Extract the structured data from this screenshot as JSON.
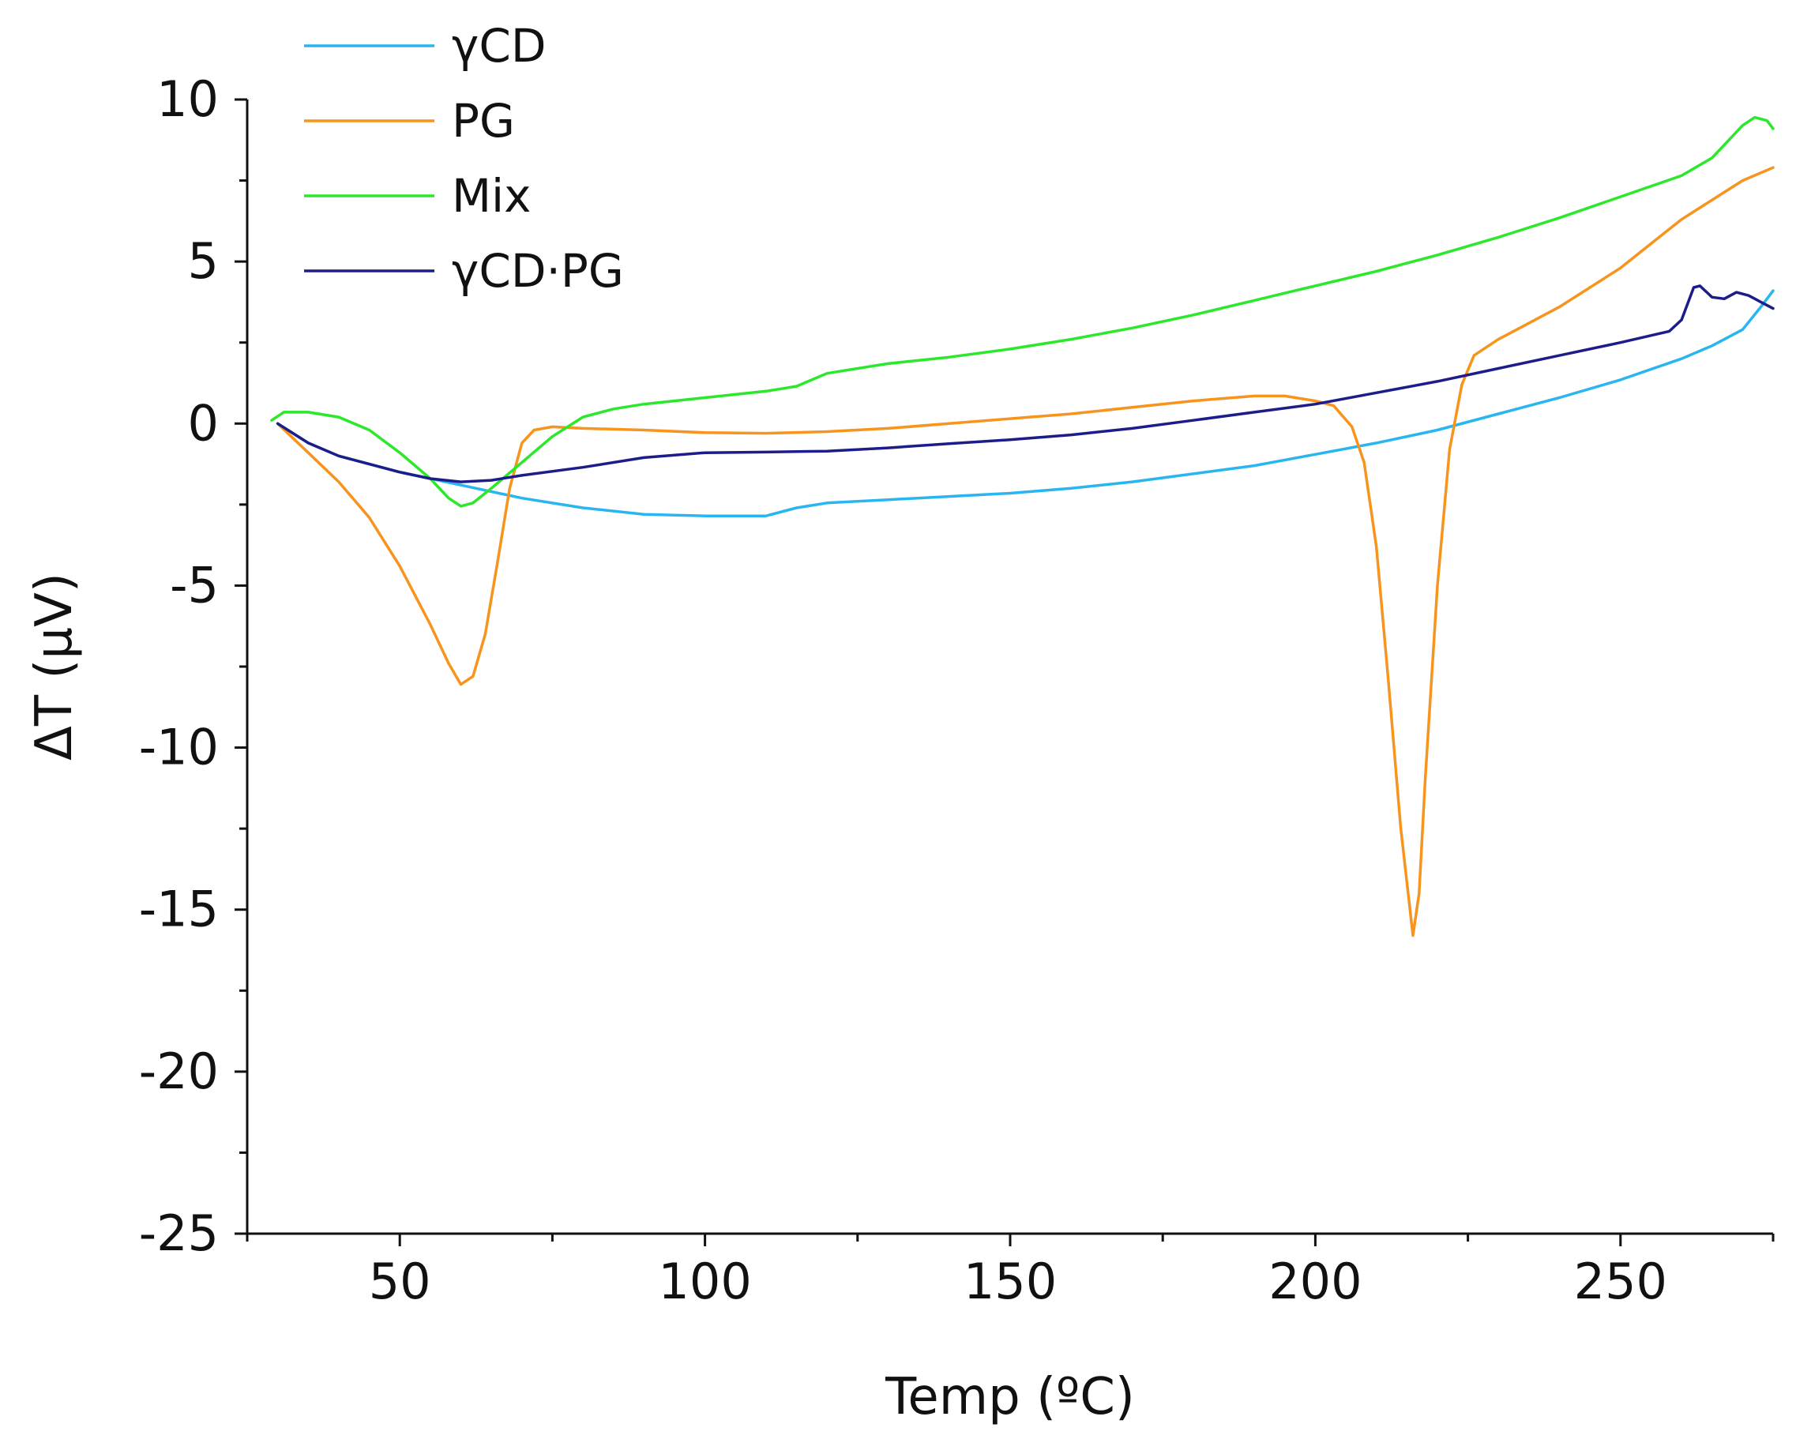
{
  "chart_data": {
    "type": "line",
    "title": "",
    "xlabel": "Temp (ºC)",
    "ylabel": "ΔT (μV)",
    "xlim": [
      25,
      275
    ],
    "ylim": [
      -25,
      10
    ],
    "x_ticks": [
      50,
      100,
      150,
      200,
      250
    ],
    "x_tick_labels": [
      "50",
      "100",
      "150",
      "200",
      "250"
    ],
    "y_ticks": [
      10,
      5,
      0,
      -5,
      -10,
      -15,
      -20,
      -25
    ],
    "y_tick_labels": [
      "10",
      "5",
      "0",
      "-5",
      "-10",
      "-15",
      "-20",
      "-25"
    ],
    "grid": false,
    "legend_position": "top-left",
    "series": [
      {
        "name": "γCD",
        "color": "#29b6f0",
        "points": [
          [
            30,
            0.0
          ],
          [
            35,
            -0.6
          ],
          [
            40,
            -1.0
          ],
          [
            50,
            -1.5
          ],
          [
            60,
            -1.9
          ],
          [
            70,
            -2.3
          ],
          [
            80,
            -2.6
          ],
          [
            90,
            -2.8
          ],
          [
            100,
            -2.85
          ],
          [
            110,
            -2.85
          ],
          [
            115,
            -2.6
          ],
          [
            120,
            -2.45
          ],
          [
            130,
            -2.35
          ],
          [
            140,
            -2.25
          ],
          [
            150,
            -2.15
          ],
          [
            160,
            -2.0
          ],
          [
            170,
            -1.8
          ],
          [
            180,
            -1.55
          ],
          [
            190,
            -1.3
          ],
          [
            200,
            -0.95
          ],
          [
            210,
            -0.6
          ],
          [
            220,
            -0.2
          ],
          [
            230,
            0.3
          ],
          [
            240,
            0.8
          ],
          [
            250,
            1.35
          ],
          [
            260,
            2.0
          ],
          [
            265,
            2.4
          ],
          [
            270,
            2.9
          ],
          [
            273,
            3.6
          ],
          [
            275,
            4.1
          ]
        ]
      },
      {
        "name": "PG",
        "color": "#f7941d",
        "points": [
          [
            30,
            0.0
          ],
          [
            35,
            -0.9
          ],
          [
            40,
            -1.8
          ],
          [
            45,
            -2.9
          ],
          [
            50,
            -4.4
          ],
          [
            55,
            -6.2
          ],
          [
            58,
            -7.4
          ],
          [
            60,
            -8.05
          ],
          [
            62,
            -7.8
          ],
          [
            64,
            -6.5
          ],
          [
            66,
            -4.3
          ],
          [
            68,
            -2.0
          ],
          [
            70,
            -0.6
          ],
          [
            72,
            -0.2
          ],
          [
            75,
            -0.1
          ],
          [
            80,
            -0.15
          ],
          [
            90,
            -0.2
          ],
          [
            100,
            -0.28
          ],
          [
            110,
            -0.3
          ],
          [
            120,
            -0.25
          ],
          [
            130,
            -0.15
          ],
          [
            140,
            0.0
          ],
          [
            150,
            0.15
          ],
          [
            160,
            0.3
          ],
          [
            170,
            0.5
          ],
          [
            180,
            0.7
          ],
          [
            190,
            0.85
          ],
          [
            195,
            0.85
          ],
          [
            200,
            0.7
          ],
          [
            203,
            0.55
          ],
          [
            206,
            -0.1
          ],
          [
            208,
            -1.2
          ],
          [
            210,
            -3.8
          ],
          [
            212,
            -8.0
          ],
          [
            214,
            -12.5
          ],
          [
            216,
            -15.8
          ],
          [
            217,
            -14.5
          ],
          [
            218,
            -11.0
          ],
          [
            220,
            -5.0
          ],
          [
            222,
            -0.8
          ],
          [
            224,
            1.2
          ],
          [
            226,
            2.1
          ],
          [
            230,
            2.6
          ],
          [
            240,
            3.6
          ],
          [
            250,
            4.8
          ],
          [
            260,
            6.3
          ],
          [
            270,
            7.5
          ],
          [
            275,
            7.9
          ]
        ]
      },
      {
        "name": "Mix",
        "color": "#2ce82c",
        "points": [
          [
            29,
            0.1
          ],
          [
            31,
            0.35
          ],
          [
            35,
            0.35
          ],
          [
            40,
            0.2
          ],
          [
            45,
            -0.2
          ],
          [
            50,
            -0.9
          ],
          [
            55,
            -1.7
          ],
          [
            58,
            -2.3
          ],
          [
            60,
            -2.55
          ],
          [
            62,
            -2.45
          ],
          [
            65,
            -2.0
          ],
          [
            70,
            -1.2
          ],
          [
            75,
            -0.4
          ],
          [
            80,
            0.2
          ],
          [
            85,
            0.45
          ],
          [
            90,
            0.6
          ],
          [
            100,
            0.8
          ],
          [
            110,
            1.0
          ],
          [
            115,
            1.15
          ],
          [
            120,
            1.55
          ],
          [
            130,
            1.85
          ],
          [
            140,
            2.05
          ],
          [
            150,
            2.3
          ],
          [
            160,
            2.6
          ],
          [
            170,
            2.95
          ],
          [
            180,
            3.35
          ],
          [
            190,
            3.8
          ],
          [
            200,
            4.25
          ],
          [
            210,
            4.7
          ],
          [
            220,
            5.2
          ],
          [
            230,
            5.75
          ],
          [
            240,
            6.35
          ],
          [
            250,
            7.0
          ],
          [
            260,
            7.65
          ],
          [
            265,
            8.2
          ],
          [
            270,
            9.2
          ],
          [
            272,
            9.45
          ],
          [
            274,
            9.35
          ],
          [
            275,
            9.1
          ]
        ]
      },
      {
        "name": "γCD·PG",
        "color": "#1c1d8a",
        "points": [
          [
            30,
            0.0
          ],
          [
            35,
            -0.6
          ],
          [
            40,
            -1.0
          ],
          [
            50,
            -1.5
          ],
          [
            55,
            -1.7
          ],
          [
            60,
            -1.8
          ],
          [
            65,
            -1.75
          ],
          [
            70,
            -1.6
          ],
          [
            80,
            -1.35
          ],
          [
            90,
            -1.05
          ],
          [
            100,
            -0.9
          ],
          [
            110,
            -0.88
          ],
          [
            120,
            -0.85
          ],
          [
            130,
            -0.75
          ],
          [
            140,
            -0.62
          ],
          [
            150,
            -0.5
          ],
          [
            160,
            -0.35
          ],
          [
            170,
            -0.15
          ],
          [
            180,
            0.1
          ],
          [
            190,
            0.35
          ],
          [
            200,
            0.6
          ],
          [
            210,
            0.95
          ],
          [
            220,
            1.3
          ],
          [
            230,
            1.7
          ],
          [
            240,
            2.1
          ],
          [
            250,
            2.5
          ],
          [
            258,
            2.85
          ],
          [
            260,
            3.2
          ],
          [
            262,
            4.2
          ],
          [
            263,
            4.25
          ],
          [
            265,
            3.9
          ],
          [
            267,
            3.85
          ],
          [
            269,
            4.05
          ],
          [
            271,
            3.95
          ],
          [
            273,
            3.75
          ],
          [
            275,
            3.55
          ]
        ]
      }
    ]
  }
}
